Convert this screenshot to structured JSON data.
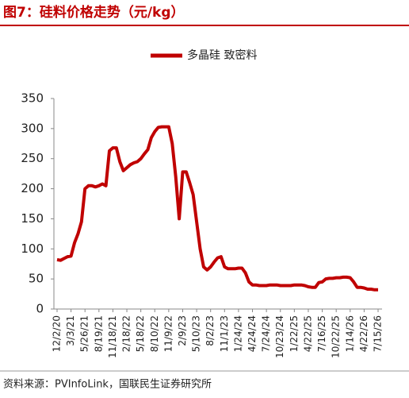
{
  "chart_data": {
    "type": "line",
    "title": "图7：硅料价格走势（元/kg）",
    "source": "资料来源：PVInfoLink，国联民生证券研究所",
    "categories": [
      "12/2/20",
      null,
      null,
      null,
      "3/3/21",
      null,
      null,
      null,
      "5/26/21",
      null,
      null,
      null,
      "8/19/21",
      null,
      null,
      null,
      "11/18/21",
      null,
      null,
      null,
      "2/18/22",
      null,
      null,
      null,
      "5/18/22",
      null,
      null,
      null,
      "8/10/22",
      null,
      null,
      null,
      "11/9/22",
      null,
      null,
      null,
      "2/9/23",
      null,
      null,
      null,
      "5/10/23",
      null,
      null,
      null,
      "8/2/23",
      null,
      null,
      null,
      "11/1/23",
      null,
      null,
      null,
      "1/24/24",
      null,
      null,
      null,
      "4/24/24",
      null,
      null,
      null,
      "7/24/24",
      null,
      null,
      null,
      "10/23/24",
      null,
      null,
      null,
      "1/22/25",
      null,
      null,
      null,
      "4/22/25",
      null,
      null,
      null,
      "7/16/25",
      null,
      null,
      null,
      "10/22/25",
      null,
      null,
      null,
      "1/14/26",
      null,
      null,
      null,
      "4/22/26",
      null,
      null,
      null,
      "7/15/26"
    ],
    "series": [
      {
        "name": "多晶硅 致密料",
        "color": "#c00000",
        "values": [
          82,
          81,
          84,
          87,
          88,
          110,
          125,
          145,
          200,
          205,
          205,
          203,
          205,
          208,
          205,
          263,
          268,
          268,
          245,
          230,
          235,
          240,
          243,
          245,
          250,
          258,
          265,
          285,
          295,
          302,
          303,
          303,
          303,
          275,
          220,
          150,
          228,
          228,
          210,
          190,
          145,
          100,
          70,
          65,
          70,
          78,
          85,
          87,
          70,
          67,
          67,
          67,
          68,
          68,
          60,
          45,
          40,
          40,
          39,
          39,
          39,
          40,
          40,
          40,
          39,
          39,
          39,
          39,
          40,
          40,
          40,
          39,
          37,
          36,
          36,
          44,
          45,
          50,
          51,
          51,
          52,
          52,
          53,
          53,
          52,
          45,
          36,
          36,
          35,
          33,
          33,
          32,
          32
        ]
      }
    ],
    "ylim": [
      0,
      350
    ],
    "yticks": [
      0,
      50,
      100,
      150,
      200,
      250,
      300,
      350
    ]
  }
}
